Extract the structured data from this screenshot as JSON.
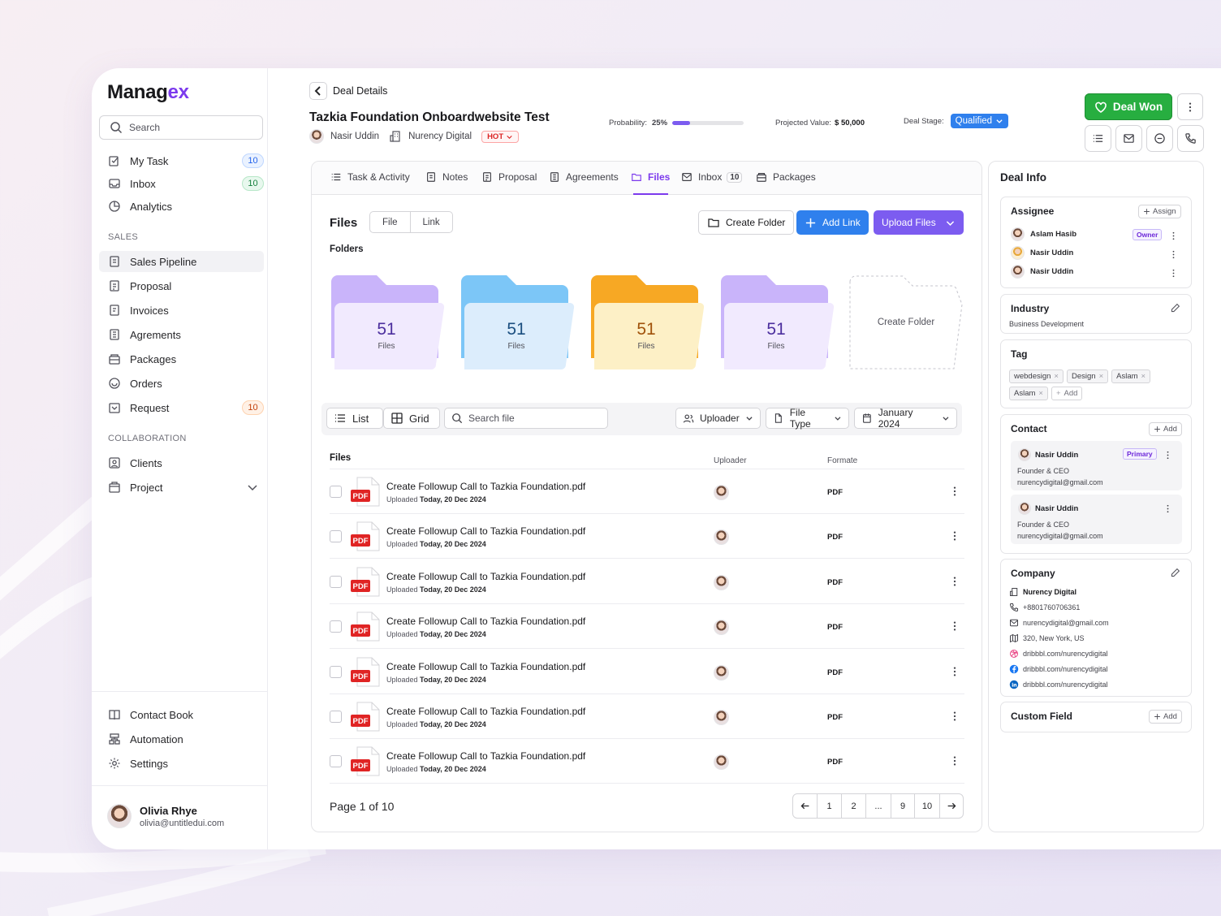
{
  "brand": {
    "logo_part1": "Manag",
    "logo_part2": "ex",
    "accent": "#7c3aed"
  },
  "sidebar": {
    "search_placeholder": "Search",
    "items_top": [
      {
        "label": "My Task",
        "icon": "task-icon",
        "badge": "10"
      },
      {
        "label": "Inbox",
        "icon": "inbox-icon",
        "badge": "10"
      },
      {
        "label": "Analytics",
        "icon": "analytics-icon"
      }
    ],
    "section_sales": "SALES",
    "items_sales": [
      {
        "label": "Sales Pipeline",
        "icon": "pipeline-icon",
        "active": true
      },
      {
        "label": "Proposal",
        "icon": "proposal-icon"
      },
      {
        "label": "Invoices",
        "icon": "invoice-icon"
      },
      {
        "label": "Agrements",
        "icon": "agreement-icon"
      },
      {
        "label": "Packages",
        "icon": "package-icon"
      },
      {
        "label": "Orders",
        "icon": "orders-icon"
      },
      {
        "label": "Request",
        "icon": "request-icon",
        "badge": "10"
      }
    ],
    "section_collab": "COLLABORATION",
    "items_collab": [
      {
        "label": "Clients",
        "icon": "clients-icon"
      },
      {
        "label": "Project",
        "icon": "project-icon"
      }
    ],
    "items_bottom": [
      {
        "label": "Contact Book",
        "icon": "book-icon"
      },
      {
        "label": "Automation",
        "icon": "automation-icon"
      },
      {
        "label": "Settings",
        "icon": "settings-icon"
      }
    ],
    "user": {
      "name": "Olivia Rhye",
      "email": "olivia@untitledui.com"
    }
  },
  "header": {
    "breadcrumb": "Deal Details",
    "title": "Tazkia Foundation Onboardwebsite Test",
    "owner": "Nasir Uddin",
    "company": "Nurency Digital",
    "priority": "HOT",
    "probability_label": "Probability:",
    "probability_value": "25%",
    "probability_fraction": 0.25,
    "projected_label": "Projected Value:",
    "projected_value": "$ 50,000",
    "stage_label": "Deal Stage:",
    "stage_value": "Qualified",
    "deal_won": "Deal Won"
  },
  "tabs": [
    {
      "label": "Task & Activity",
      "icon": "list-icon"
    },
    {
      "label": "Notes",
      "icon": "notes-icon"
    },
    {
      "label": "Proposal",
      "icon": "proposal-icon"
    },
    {
      "label": "Agreements",
      "icon": "agreement-icon"
    },
    {
      "label": "Files",
      "icon": "folder-icon",
      "active": true
    },
    {
      "label": "Inbox",
      "icon": "inbox-icon",
      "count": "10"
    },
    {
      "label": "Packages",
      "icon": "package-icon"
    }
  ],
  "files": {
    "heading": "Files",
    "seg": [
      "File",
      "Link"
    ],
    "create_folder": "Create Folder",
    "add_link": "Add Link",
    "upload_files": "Upload Files",
    "folders_heading": "Folders",
    "folders": [
      {
        "count": "51",
        "label": "Files",
        "color": "#a88bf5"
      },
      {
        "count": "51",
        "label": "Files",
        "color": "#4aa8f0"
      },
      {
        "count": "51",
        "label": "Files",
        "color": "#f5a623"
      },
      {
        "count": "51",
        "label": "Files",
        "color": "#a88bf5"
      }
    ],
    "new_folder": "Create Folder",
    "view_list": "List",
    "view_grid": "Grid",
    "search_placeholder": "Search file",
    "filter_uploader": "Uploader",
    "filter_type": "File Type",
    "filter_date": "January 2024",
    "col_files": "Files",
    "col_uploader": "Uploader",
    "col_format": "Formate",
    "rows": [
      {
        "name": "Create Followup Call to Tazkia Foundation.pdf",
        "uploaded": "Uploaded",
        "date": "Today, 20 Dec 2024",
        "format": "PDF",
        "badge": "PDF"
      },
      {
        "name": "Create Followup Call to Tazkia Foundation.pdf",
        "uploaded": "Uploaded",
        "date": "Today, 20 Dec 2024",
        "format": "PDF",
        "badge": "PDF"
      },
      {
        "name": "Create Followup Call to Tazkia Foundation.pdf",
        "uploaded": "Uploaded",
        "date": "Today, 20 Dec 2024",
        "format": "PDF",
        "badge": "PDF"
      },
      {
        "name": "Create Followup Call to Tazkia Foundation.pdf",
        "uploaded": "Uploaded",
        "date": "Today, 20 Dec 2024",
        "format": "PDF",
        "badge": "PDF"
      },
      {
        "name": "Create Followup Call to Tazkia Foundation.pdf",
        "uploaded": "Uploaded",
        "date": "Today, 20 Dec 2024",
        "format": "PDF",
        "badge": "PDF"
      },
      {
        "name": "Create Followup Call to Tazkia Foundation.pdf",
        "uploaded": "Uploaded",
        "date": "Today, 20 Dec 2024",
        "format": "PDF",
        "badge": "PDF"
      },
      {
        "name": "Create Followup Call to Tazkia Foundation.pdf",
        "uploaded": "Uploaded",
        "date": "Today, 20 Dec 2024",
        "format": "PDF",
        "badge": "PDF"
      }
    ],
    "page_info": "Page 1 of 10",
    "pages": [
      "1",
      "2",
      "...",
      "9",
      "10"
    ]
  },
  "deal_info": {
    "title": "Deal Info",
    "assignee": {
      "title": "Assignee",
      "assign_btn": "Assign",
      "people": [
        {
          "name": "Aslam Hasib",
          "tag": "Owner"
        },
        {
          "name": "Nasir Uddin"
        },
        {
          "name": "Nasir Uddin"
        }
      ]
    },
    "industry": {
      "title": "Industry",
      "value": "Business Development"
    },
    "tag": {
      "title": "Tag",
      "tags": [
        "webdesign",
        "Design",
        "Aslam",
        "Aslam"
      ],
      "add": "Add"
    },
    "contact": {
      "title": "Contact",
      "add": "Add",
      "people": [
        {
          "name": "Nasir Uddin",
          "role": "Founder & CEO",
          "email": "nurencydigital@gmail.com",
          "tag": "Primary"
        },
        {
          "name": "Nasir Uddin",
          "role": "Founder & CEO",
          "email": "nurencydigital@gmail.com"
        }
      ]
    },
    "company": {
      "title": "Company",
      "name": "Nurency Digital",
      "phone": "+8801760706361",
      "email": "nurencydigital@gmail.com",
      "address": "320, New York, US",
      "dribbble": "dribbbl.com/nurencydigital",
      "facebook": "dribbbl.com/nurencydigital",
      "linkedin": "dribbbl.com/nurencydigital"
    },
    "custom_field": {
      "title": "Custom Field",
      "add": "Add"
    }
  }
}
